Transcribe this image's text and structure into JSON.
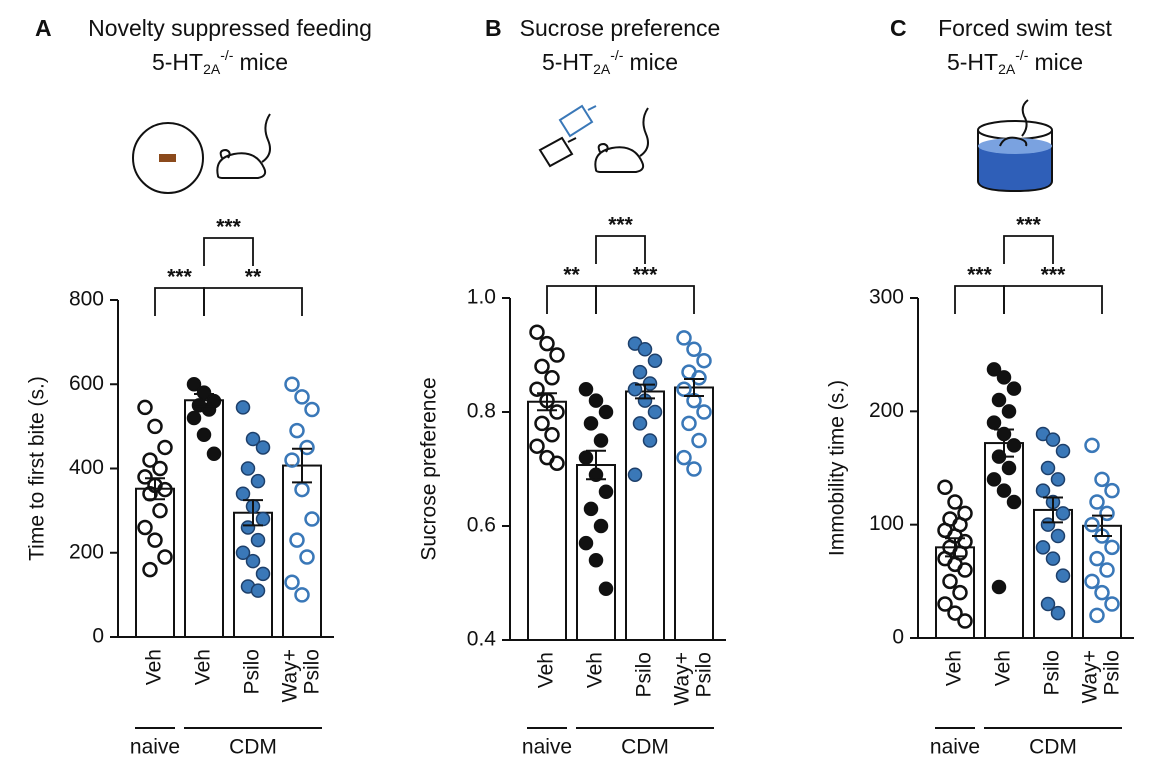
{
  "chart_data": [
    {
      "type": "bar",
      "label": "A",
      "title": "Novelty suppressed feeding",
      "subtitle": {
        "base": "5-HT",
        "sub": "2A",
        "sup": "-/-",
        "rest": "mice"
      },
      "ylabel": "Time to first bite (s.)",
      "categories": [
        [
          "Veh"
        ],
        [
          "Veh"
        ],
        [
          "Psilo"
        ],
        [
          "Way+",
          "Psilo"
        ]
      ],
      "groups": [
        {
          "label": "naive",
          "span": [
            0,
            0
          ]
        },
        {
          "label": "CDM",
          "span": [
            1,
            3
          ]
        }
      ],
      "values": [
        352,
        562,
        295,
        407
      ],
      "errors": [
        25,
        15,
        30,
        40
      ],
      "point_colors": [
        "#111111",
        "#111111",
        "#3a78b8",
        "#3a78b8"
      ],
      "point_filled": [
        false,
        true,
        true,
        false
      ],
      "points": [
        [
          545,
          500,
          450,
          420,
          400,
          380,
          360,
          350,
          340,
          300,
          260,
          230,
          190,
          160
        ],
        [
          600,
          580,
          560,
          550,
          540,
          520,
          480,
          435
        ],
        [
          545,
          470,
          450,
          400,
          370,
          340,
          310,
          280,
          260,
          230,
          200,
          180,
          150,
          120,
          110
        ],
        [
          600,
          570,
          540,
          490,
          450,
          420,
          350,
          280,
          230,
          190,
          130,
          100
        ]
      ],
      "brackets": [
        {
          "from": 0,
          "to": 1,
          "label": "***",
          "level": 1
        },
        {
          "from": 1,
          "to": 2,
          "label": "***",
          "level": 2
        },
        {
          "from": 1,
          "to": 3,
          "label": "**",
          "level": 1
        }
      ],
      "ylim": [
        0,
        800
      ],
      "yticks": [
        0,
        200,
        400,
        600,
        800
      ]
    },
    {
      "type": "bar",
      "label": "B",
      "title": "Sucrose preference",
      "subtitle": {
        "base": "5-HT",
        "sub": "2A",
        "sup": "-/-",
        "rest": "mice"
      },
      "ylabel": "Sucrose preference",
      "categories": [
        [
          "Veh"
        ],
        [
          "Veh"
        ],
        [
          "Psilo"
        ],
        [
          "Way+",
          "Psilo"
        ]
      ],
      "groups": [
        {
          "label": "naive",
          "span": [
            0,
            0
          ]
        },
        {
          "label": "CDM",
          "span": [
            1,
            3
          ]
        }
      ],
      "values": [
        0.818,
        0.707,
        0.836,
        0.843
      ],
      "errors": [
        0.015,
        0.025,
        0.012,
        0.015
      ],
      "point_colors": [
        "#111111",
        "#111111",
        "#3a78b8",
        "#3a78b8"
      ],
      "point_filled": [
        false,
        true,
        true,
        false
      ],
      "points": [
        [
          0.94,
          0.92,
          0.9,
          0.88,
          0.86,
          0.84,
          0.82,
          0.8,
          0.78,
          0.76,
          0.74,
          0.72,
          0.71
        ],
        [
          0.84,
          0.82,
          0.8,
          0.78,
          0.75,
          0.72,
          0.69,
          0.66,
          0.63,
          0.6,
          0.57,
          0.54,
          0.49
        ],
        [
          0.92,
          0.91,
          0.89,
          0.87,
          0.85,
          0.84,
          0.82,
          0.8,
          0.78,
          0.75,
          0.69
        ],
        [
          0.93,
          0.91,
          0.89,
          0.87,
          0.86,
          0.84,
          0.82,
          0.8,
          0.78,
          0.75,
          0.72,
          0.7
        ]
      ],
      "brackets": [
        {
          "from": 0,
          "to": 1,
          "label": "**",
          "level": 1
        },
        {
          "from": 1,
          "to": 2,
          "label": "***",
          "level": 2
        },
        {
          "from": 1,
          "to": 3,
          "label": "***",
          "level": 1
        }
      ],
      "ylim": [
        0.4,
        1.0
      ],
      "yticks": [
        0.4,
        0.6,
        0.8,
        {
          "value": 1,
          "label": "1.0"
        }
      ]
    },
    {
      "type": "bar",
      "label": "C",
      "title": "Forced swim test",
      "subtitle": {
        "base": "5-HT",
        "sub": "2A",
        "sup": "-/-",
        "rest": "mice"
      },
      "ylabel": "Immobility time (s.)",
      "categories": [
        [
          "Veh"
        ],
        [
          "Veh"
        ],
        [
          "Psilo"
        ],
        [
          "Way+",
          "Psilo"
        ]
      ],
      "groups": [
        {
          "label": "naive",
          "span": [
            0,
            0
          ]
        },
        {
          "label": "CDM",
          "span": [
            1,
            3
          ]
        }
      ],
      "values": [
        80,
        172,
        113,
        99
      ],
      "errors": [
        8,
        12,
        11,
        9
      ],
      "point_colors": [
        "#111111",
        "#111111",
        "#3a78b8",
        "#3a78b8"
      ],
      "point_filled": [
        false,
        true,
        true,
        false
      ],
      "points": [
        [
          133,
          120,
          110,
          105,
          100,
          95,
          90,
          85,
          80,
          75,
          70,
          65,
          60,
          50,
          40,
          30,
          22,
          15
        ],
        [
          237,
          230,
          220,
          210,
          200,
          190,
          180,
          170,
          160,
          150,
          140,
          130,
          120,
          45
        ],
        [
          180,
          175,
          165,
          150,
          140,
          130,
          120,
          110,
          100,
          90,
          80,
          70,
          55,
          30,
          22
        ],
        [
          170,
          140,
          130,
          120,
          110,
          100,
          90,
          80,
          70,
          60,
          50,
          40,
          30,
          20
        ]
      ],
      "brackets": [
        {
          "from": 0,
          "to": 1,
          "label": "***",
          "level": 1
        },
        {
          "from": 1,
          "to": 2,
          "label": "***",
          "level": 2
        },
        {
          "from": 1,
          "to": 3,
          "label": "***",
          "level": 1
        }
      ],
      "ylim": [
        0,
        300
      ],
      "yticks": [
        0,
        100,
        200,
        300
      ]
    }
  ]
}
